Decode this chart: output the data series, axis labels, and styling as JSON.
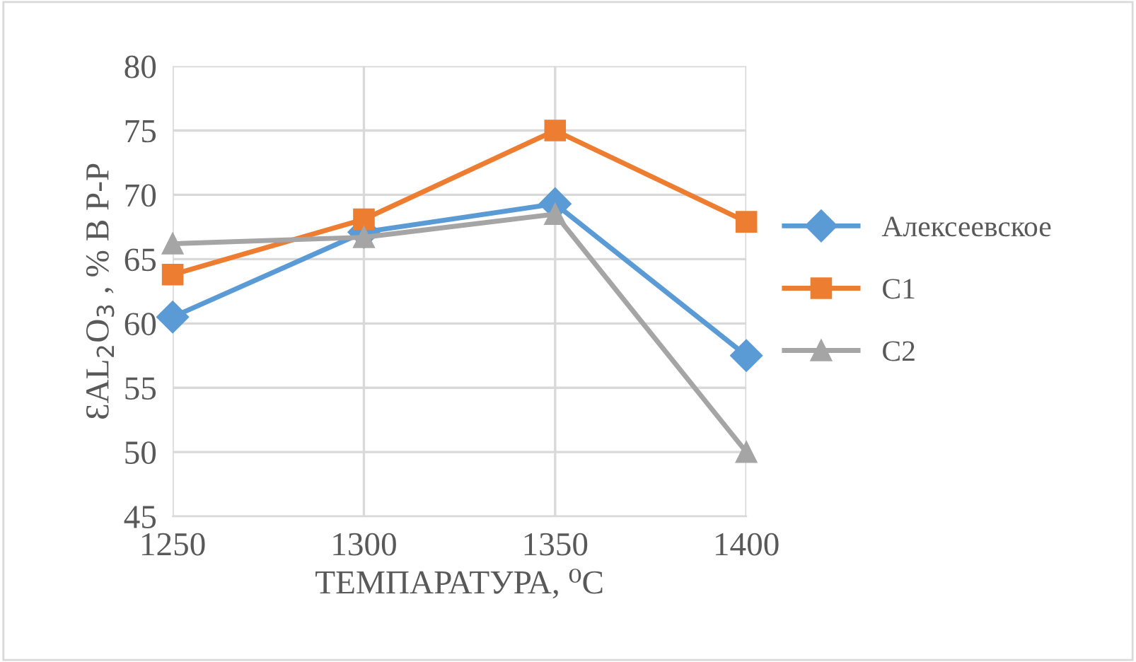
{
  "chart_data": {
    "type": "line",
    "xlabel": "ТЕМПАРАТУРА, ⁰C",
    "ylabel": "ƐAL$_{2}$O$_{3}$ , % В Р-Р",
    "x": [
      1250,
      1300,
      1350,
      1400
    ],
    "series": [
      {
        "name": "Алексеевское",
        "color": "#5b9bd5",
        "marker": "diamond",
        "values": [
          60.5,
          67.1,
          69.3,
          57.5
        ]
      },
      {
        "name": "С1",
        "color": "#ed7d31",
        "marker": "square",
        "values": [
          63.8,
          68.1,
          75.0,
          67.9
        ]
      },
      {
        "name": "С2",
        "color": "#a5a5a5",
        "marker": "triangle",
        "values": [
          66.2,
          66.7,
          68.5,
          50.0
        ]
      }
    ],
    "xlim": [
      1250,
      1400
    ],
    "xticks": [
      1250,
      1300,
      1350,
      1400
    ],
    "ylim": [
      45,
      80
    ],
    "yticks": [
      45,
      50,
      55,
      60,
      65,
      70,
      75,
      80
    ],
    "grid": true,
    "legend": "right",
    "line_style": "solid"
  }
}
